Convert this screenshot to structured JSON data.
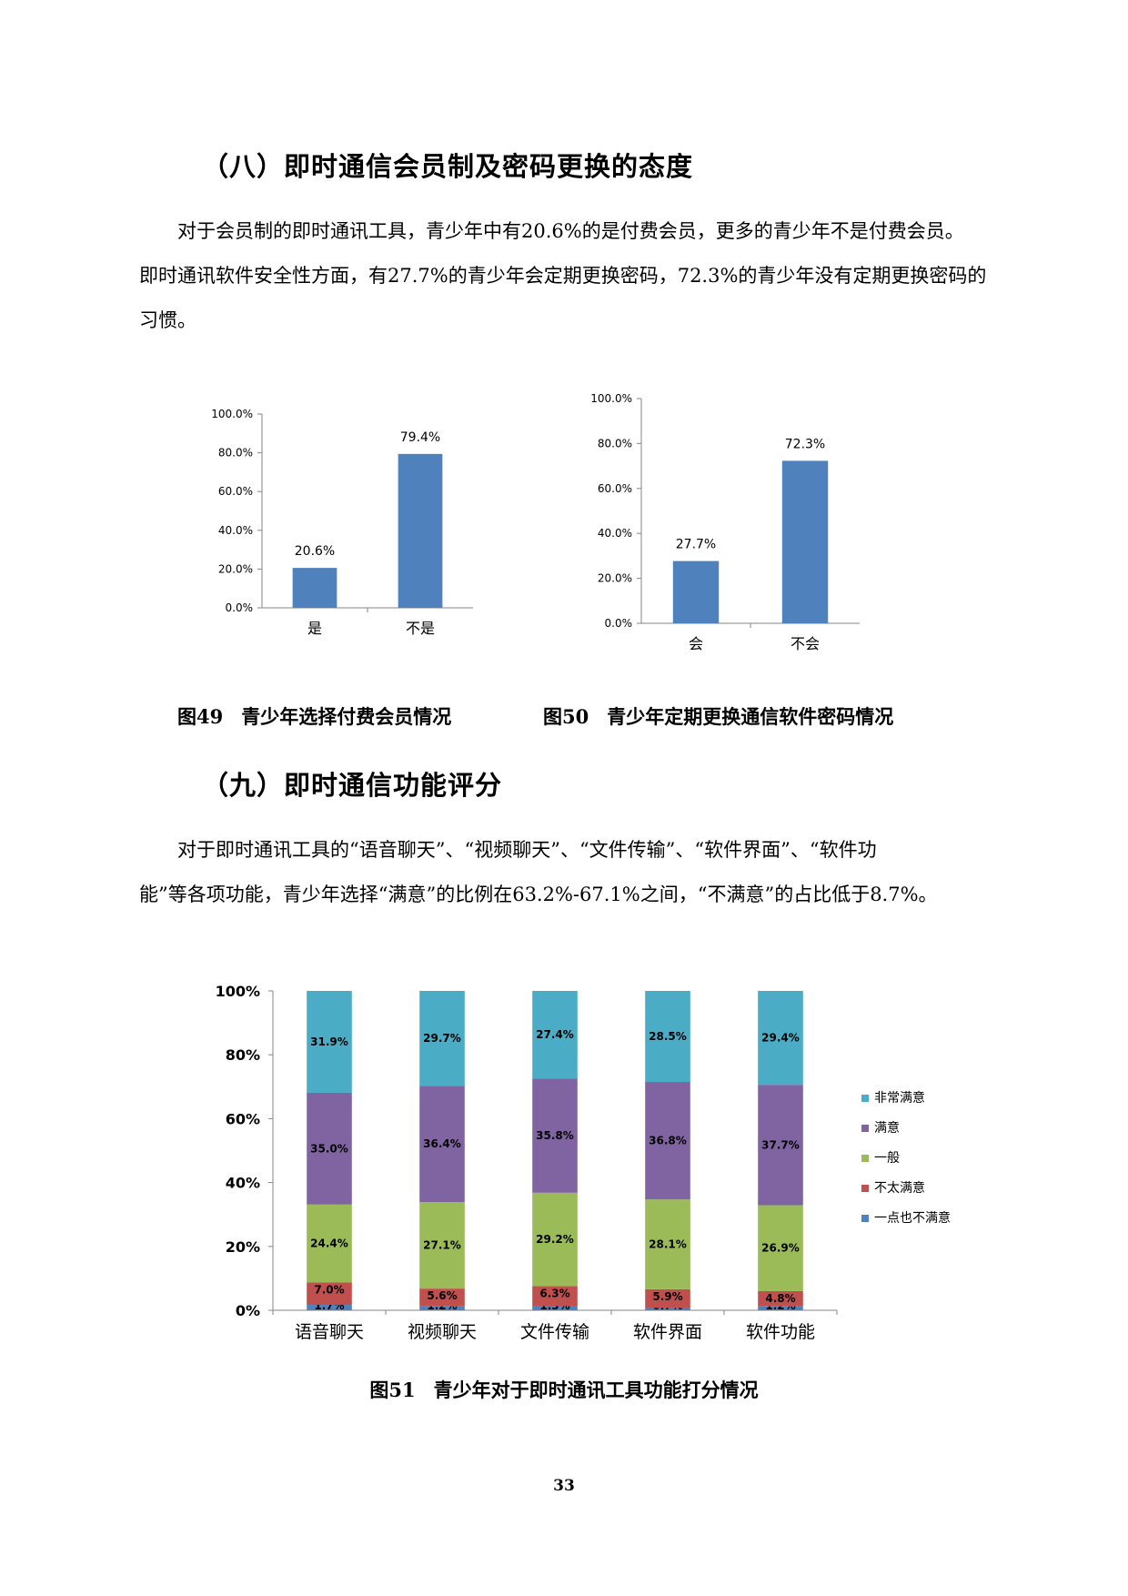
{
  "section8": {
    "heading": "（八）即时通信会员制及密码更换的态度",
    "para_lines": [
      "对于会员制的即时通讯工具，青少年中有20.6%的是付费会员，更多的青少年不是付费会员。",
      "即时通讯软件安全性方面，有27.7%的青少年会定期更换密码，72.3%的青少年没有定期更换密码的",
      "习惯。"
    ]
  },
  "fig49": {
    "number": "图49",
    "title": "青少年选择付费会员情况"
  },
  "fig50": {
    "number": "图50",
    "title": "青少年定期更换通信软件密码情况"
  },
  "section9": {
    "heading": "（九）即时通信功能评分",
    "para_lines": [
      "对于即时通讯工具的“语音聊天”、“视频聊天”、“文件传输”、“软件界面”、“软件功",
      "能”等各项功能，青少年选择“满意”的比例在63.2%-67.1%之间，“不满意”的占比低于8.7%。"
    ]
  },
  "fig51": {
    "number": "图51",
    "title": "青少年对于即时通讯工具功能打分情况"
  },
  "page_number": "33",
  "chart_data": [
    {
      "type": "bar",
      "categories": [
        "是",
        "不是"
      ],
      "values": [
        20.6,
        79.4
      ],
      "value_labels": [
        "20.6%",
        "79.4%"
      ],
      "ylim": [
        0,
        100
      ],
      "yticks": [
        "0.0%",
        "20.0%",
        "40.0%",
        "60.0%",
        "80.0%",
        "100.0%"
      ],
      "color": "#4f81bd",
      "grid": false
    },
    {
      "type": "bar",
      "categories": [
        "会",
        "不会"
      ],
      "values": [
        27.7,
        72.3
      ],
      "value_labels": [
        "27.7%",
        "72.3%"
      ],
      "ylim": [
        0,
        100
      ],
      "yticks": [
        "0.0%",
        "20.0%",
        "40.0%",
        "60.0%",
        "80.0%",
        "100.0%"
      ],
      "color": "#4f81bd",
      "grid": false
    },
    {
      "type": "bar",
      "stacked": true,
      "categories": [
        "语音聊天",
        "视频聊天",
        "文件传输",
        "软件界面",
        "软件功能"
      ],
      "ylim": [
        0,
        100
      ],
      "yticks": [
        "0%",
        "20%",
        "40%",
        "60%",
        "80%",
        "100%"
      ],
      "legend_position": "right",
      "grid": false,
      "series": [
        {
          "name": "一点也不满意",
          "color": "#4f81bd",
          "values": [
            1.7,
            1.2,
            1.3,
            0.7,
            1.2
          ],
          "labels": [
            "1.7%",
            "1.2%",
            "1.3%",
            "0.7%",
            "1.2%"
          ]
        },
        {
          "name": "不太满意",
          "color": "#c0504d",
          "values": [
            7.0,
            5.6,
            6.3,
            5.9,
            4.8
          ],
          "labels": [
            "7.0%",
            "5.6%",
            "6.3%",
            "5.9%",
            "4.8%"
          ]
        },
        {
          "name": "一般",
          "color": "#9bbb59",
          "values": [
            24.4,
            27.1,
            29.2,
            28.1,
            26.9
          ],
          "labels": [
            "24.4%",
            "27.1%",
            "29.2%",
            "28.1%",
            "26.9%"
          ]
        },
        {
          "name": "满意",
          "color": "#8064a2",
          "values": [
            35.0,
            36.4,
            35.8,
            36.8,
            37.7
          ],
          "labels": [
            "35.0%",
            "36.4%",
            "35.8%",
            "36.8%",
            "37.7%"
          ]
        },
        {
          "name": "非常满意",
          "color": "#4bacc6",
          "values": [
            31.9,
            29.7,
            27.4,
            28.5,
            29.4
          ],
          "labels": [
            "31.9%",
            "29.7%",
            "27.4%",
            "28.5%",
            "29.4%"
          ]
        }
      ]
    }
  ]
}
